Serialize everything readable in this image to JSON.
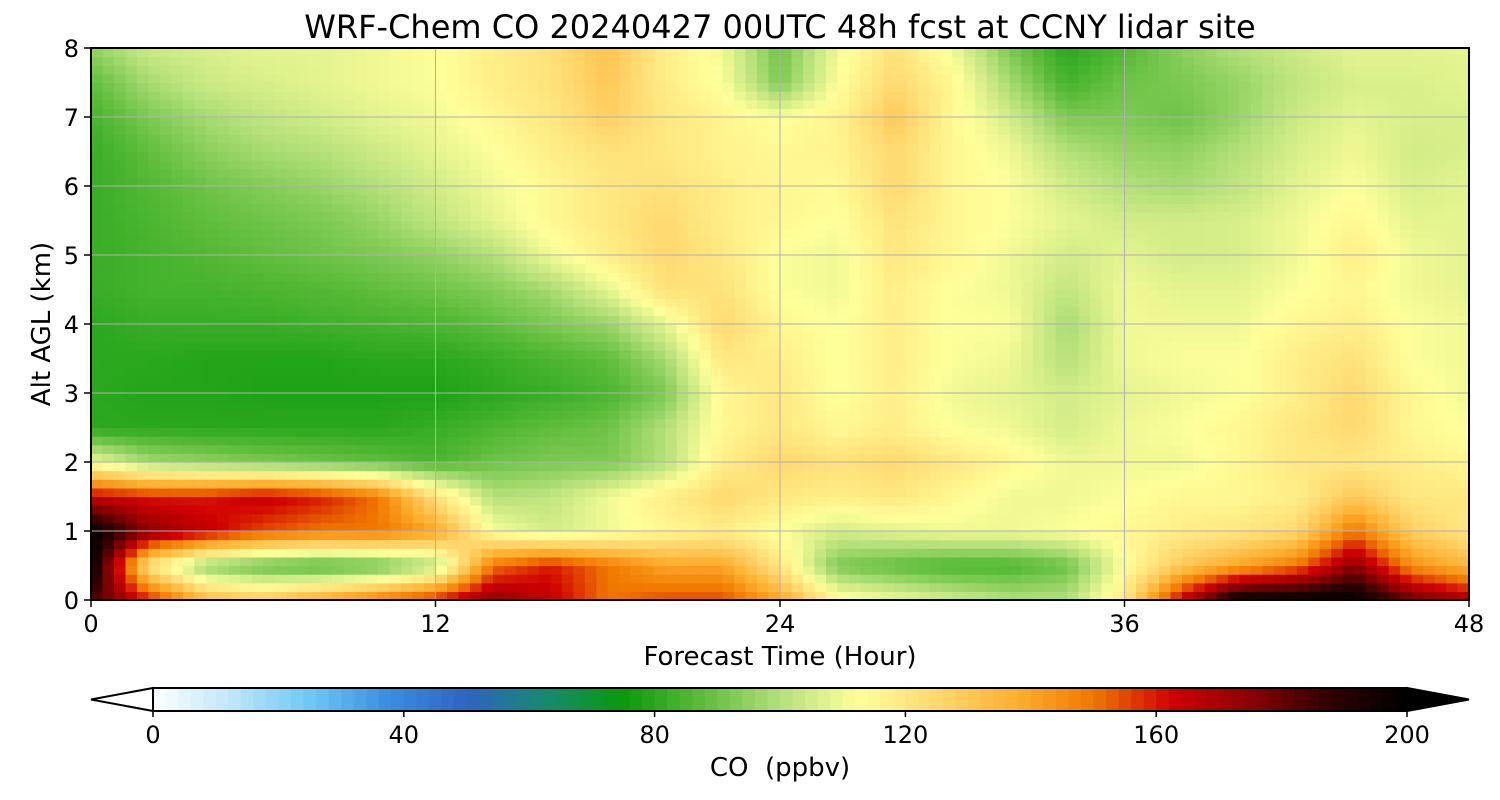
{
  "chart_data": {
    "type": "heatmap",
    "title": "WRF-Chem CO  20240427 00UTC 48h fcst at CCNY lidar site",
    "xlabel": "Forecast Time (Hour)",
    "ylabel": "Alt AGL (km)",
    "xlim": [
      0,
      48
    ],
    "ylim": [
      0,
      8
    ],
    "xticks": [
      0,
      12,
      24,
      36,
      48
    ],
    "yticks": [
      0,
      1,
      2,
      3,
      4,
      5,
      6,
      7,
      8
    ],
    "grid": true,
    "colorbar": {
      "label": "CO  (ppbv)",
      "range": [
        0,
        200
      ],
      "ticks": [
        0,
        40,
        80,
        120,
        160,
        200
      ],
      "extend": "both",
      "orientation": "horizontal",
      "colors": [
        "#ffffff",
        "#bfe6fb",
        "#6ec8f5",
        "#3a8ee0",
        "#2f63c2",
        "#178a70",
        "#0a9a0a",
        "#5cbc3a",
        "#b4e07a",
        "#ffff9a",
        "#ffd870",
        "#ffb030",
        "#f07800",
        "#d00000",
        "#8a0000",
        "#300000",
        "#000000"
      ]
    },
    "x": [
      0,
      2,
      4,
      6,
      8,
      10,
      12,
      14,
      16,
      18,
      20,
      22,
      24,
      26,
      28,
      30,
      32,
      34,
      36,
      38,
      40,
      42,
      44,
      46,
      48
    ],
    "y": [
      0,
      0.5,
      1,
      1.5,
      2,
      2.5,
      3,
      3.5,
      4,
      4.5,
      5,
      5.5,
      6,
      6.5,
      7,
      7.5,
      8
    ],
    "z": [
      [
        185,
        160,
        135,
        130,
        140,
        150,
        160,
        175,
        165,
        150,
        155,
        155,
        140,
        115,
        110,
        105,
        100,
        100,
        120,
        165,
        200,
        200,
        200,
        180,
        170
      ],
      [
        200,
        120,
        95,
        88,
        85,
        88,
        100,
        150,
        160,
        150,
        140,
        140,
        120,
        92,
        88,
        85,
        85,
        90,
        112,
        130,
        140,
        150,
        175,
        145,
        135
      ],
      [
        200,
        175,
        165,
        155,
        150,
        150,
        140,
        112,
        105,
        110,
        115,
        118,
        112,
        105,
        108,
        110,
        110,
        112,
        115,
        118,
        120,
        125,
        150,
        128,
        120
      ],
      [
        165,
        160,
        160,
        165,
        160,
        150,
        122,
        100,
        102,
        110,
        118,
        125,
        120,
        118,
        120,
        115,
        110,
        110,
        112,
        115,
        115,
        118,
        130,
        120,
        120
      ],
      [
        110,
        98,
        95,
        92,
        90,
        88,
        85,
        90,
        92,
        92,
        100,
        118,
        125,
        122,
        125,
        120,
        115,
        110,
        110,
        110,
        115,
        120,
        120,
        118,
        115
      ],
      [
        80,
        80,
        80,
        80,
        80,
        80,
        82,
        85,
        88,
        90,
        100,
        115,
        120,
        115,
        118,
        112,
        110,
        105,
        110,
        112,
        115,
        120,
        125,
        115,
        112
      ],
      [
        80,
        79,
        79,
        78,
        78,
        78,
        78,
        80,
        82,
        85,
        92,
        115,
        120,
        112,
        118,
        110,
        108,
        105,
        108,
        110,
        112,
        118,
        125,
        115,
        110
      ],
      [
        80,
        80,
        79,
        79,
        79,
        80,
        80,
        82,
        85,
        88,
        98,
        120,
        118,
        112,
        118,
        112,
        110,
        100,
        110,
        112,
        112,
        118,
        122,
        112,
        110
      ],
      [
        80,
        82,
        82,
        82,
        83,
        84,
        85,
        88,
        92,
        96,
        108,
        125,
        115,
        112,
        118,
        112,
        112,
        98,
        110,
        110,
        110,
        115,
        118,
        112,
        110
      ],
      [
        82,
        84,
        84,
        85,
        86,
        88,
        90,
        93,
        98,
        108,
        122,
        122,
        112,
        110,
        118,
        112,
        110,
        102,
        110,
        108,
        108,
        112,
        115,
        110,
        108
      ],
      [
        82,
        84,
        86,
        88,
        90,
        92,
        95,
        100,
        110,
        118,
        125,
        120,
        112,
        110,
        120,
        115,
        110,
        105,
        108,
        105,
        106,
        110,
        118,
        110,
        108
      ],
      [
        82,
        85,
        88,
        90,
        92,
        96,
        102,
        108,
        115,
        120,
        125,
        118,
        115,
        112,
        122,
        115,
        112,
        108,
        105,
        105,
        106,
        110,
        115,
        108,
        108
      ],
      [
        82,
        86,
        90,
        93,
        96,
        100,
        105,
        110,
        115,
        120,
        122,
        118,
        115,
        114,
        125,
        115,
        112,
        105,
        100,
        98,
        102,
        108,
        112,
        106,
        108
      ],
      [
        82,
        88,
        94,
        98,
        100,
        104,
        108,
        112,
        118,
        122,
        120,
        116,
        115,
        116,
        125,
        115,
        110,
        100,
        96,
        95,
        100,
        106,
        110,
        105,
        106
      ],
      [
        84,
        92,
        98,
        102,
        105,
        108,
        110,
        115,
        120,
        128,
        120,
        116,
        112,
        116,
        130,
        115,
        105,
        92,
        92,
        90,
        96,
        104,
        108,
        106,
        106
      ],
      [
        88,
        98,
        104,
        106,
        108,
        110,
        112,
        118,
        122,
        130,
        118,
        112,
        92,
        112,
        125,
        115,
        98,
        84,
        90,
        92,
        96,
        102,
        106,
        106,
        108
      ],
      [
        95,
        104,
        106,
        108,
        108,
        110,
        112,
        118,
        122,
        132,
        118,
        110,
        90,
        110,
        122,
        110,
        92,
        80,
        86,
        94,
        100,
        104,
        108,
        108,
        108
      ]
    ]
  }
}
